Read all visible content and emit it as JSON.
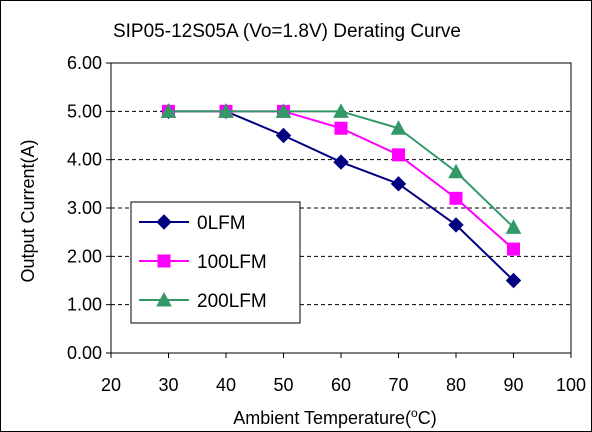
{
  "chart_data": {
    "type": "line",
    "title": "SIP05-12S05A (Vo=1.8V) Derating Curve",
    "xlabel_main": "Ambient Temperature(",
    "xlabel_sup": "o",
    "xlabel_unit": "C)",
    "ylabel": "Output Current(A)",
    "xlim": [
      20,
      100
    ],
    "ylim": [
      0,
      6
    ],
    "x_ticks": [
      20,
      30,
      40,
      50,
      60,
      70,
      80,
      90,
      100
    ],
    "x_tick_labels": [
      "20",
      "30",
      "40",
      "50",
      "60",
      "70",
      "80",
      "90",
      "100"
    ],
    "y_ticks": [
      0,
      1,
      2,
      3,
      4,
      5,
      6
    ],
    "y_tick_labels": [
      "0.00",
      "1.00",
      "2.00",
      "3.00",
      "4.00",
      "5.00",
      "6.00"
    ],
    "grid": "horizontal-dashed",
    "legend_position": "lower-left",
    "x": [
      30,
      40,
      50,
      60,
      70,
      80,
      90
    ],
    "series": [
      {
        "name": "0LFM",
        "color": "#000080",
        "marker": "diamond",
        "values": [
          5.0,
          5.0,
          4.5,
          3.95,
          3.5,
          2.65,
          1.5
        ]
      },
      {
        "name": "100LFM",
        "color": "#ff00ff",
        "marker": "square",
        "values": [
          5.0,
          5.0,
          5.0,
          4.65,
          4.1,
          3.2,
          2.15
        ]
      },
      {
        "name": "200LFM",
        "color": "#339966",
        "marker": "triangle",
        "values": [
          5.0,
          5.0,
          5.0,
          5.0,
          4.65,
          3.75,
          2.6
        ]
      }
    ]
  }
}
